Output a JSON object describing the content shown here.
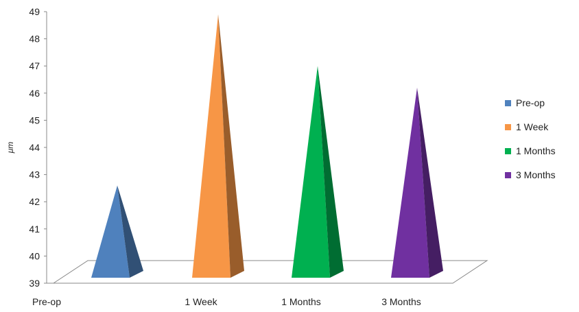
{
  "chart_data": {
    "type": "bar",
    "style": "3d-pyramid",
    "title": "",
    "xlabel": "",
    "ylabel": "μm",
    "ylim": [
      39,
      49
    ],
    "yticks": [
      39,
      40,
      41,
      42,
      43,
      44,
      45,
      46,
      47,
      48,
      49
    ],
    "categories": [
      "Pre-op",
      "1 Week",
      "1 Months",
      "3 Months"
    ],
    "series": [
      {
        "name": "Pre-op",
        "color": "#4F81BD",
        "values": [
          42.6,
          null,
          null,
          null
        ]
      },
      {
        "name": "1 Week",
        "color": "#F79646",
        "values": [
          null,
          48.9,
          null,
          null
        ]
      },
      {
        "name": "1 Months",
        "color": "#00B050",
        "values": [
          null,
          null,
          47.0,
          null
        ]
      },
      {
        "name": "3 Months",
        "color": "#7030A0",
        "values": [
          null,
          null,
          null,
          46.2
        ]
      }
    ],
    "legend_position": "right",
    "grid": false
  }
}
